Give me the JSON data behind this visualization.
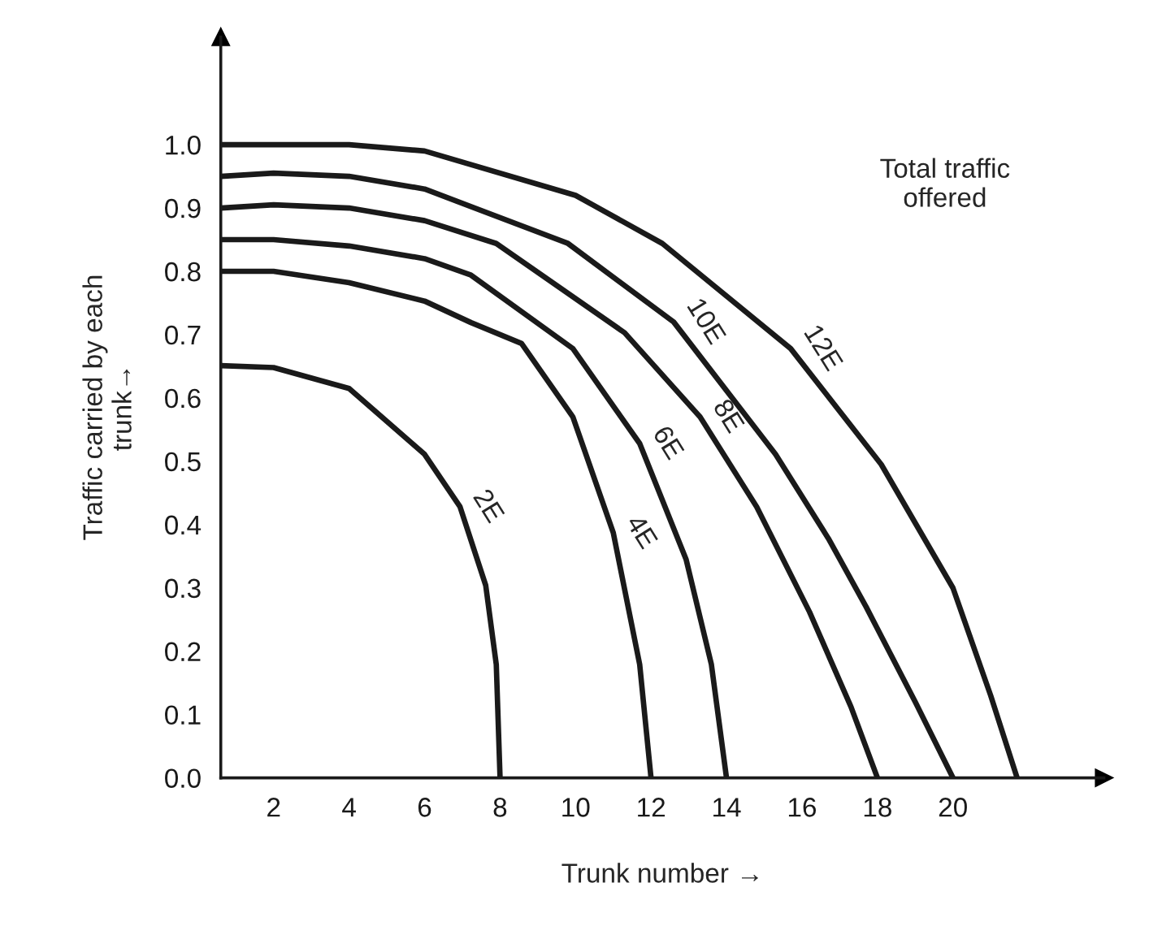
{
  "chart_data": {
    "type": "line",
    "xlabel": "Trunk number →",
    "ylabel": "Traffic carried by each\ntrunk→",
    "xlim": [
      0.6,
      24
    ],
    "ylim": [
      0,
      1.17
    ],
    "xticks": [
      2,
      4,
      6,
      8,
      10,
      12,
      14,
      16,
      18,
      20
    ],
    "yticks": [
      {
        "value": 0,
        "label": "0.0"
      },
      0.1,
      0.2,
      0.3,
      0.4,
      0.5,
      0.6,
      0.7,
      0.8,
      0.9,
      {
        "value": 1,
        "label": "1.0"
      }
    ],
    "grid": false,
    "legend": false,
    "marker": "none",
    "line_style": "solid",
    "series": [
      {
        "name": "2E",
        "color": "#1a1a1a",
        "x": [
          0.6,
          2,
          4,
          6,
          6.94,
          7.62,
          7.9,
          8
        ],
        "values": [
          0.651,
          0.648,
          0.615,
          0.511,
          0.428,
          0.304,
          0.179,
          0
        ]
      },
      {
        "name": "4E",
        "color": "#1a1a1a",
        "x": [
          0.6,
          2,
          4,
          6,
          7.23,
          8.57,
          9.93,
          11.0,
          11.7,
          12
        ],
        "values": [
          0.8,
          0.8,
          0.782,
          0.753,
          0.719,
          0.686,
          0.57,
          0.387,
          0.179,
          0
        ]
      },
      {
        "name": "6E",
        "color": "#1a1a1a",
        "x": [
          0.6,
          2,
          4,
          6,
          7.23,
          9.93,
          11.7,
          12.93,
          13.6,
          14
        ],
        "values": [
          0.85,
          0.85,
          0.84,
          0.82,
          0.794,
          0.678,
          0.528,
          0.345,
          0.179,
          0
        ]
      },
      {
        "name": "8E",
        "color": "#1a1a1a",
        "x": [
          0.6,
          2,
          4,
          6,
          7.9,
          11.3,
          13.3,
          14.8,
          16.2,
          17.3,
          18
        ],
        "values": [
          0.9,
          0.905,
          0.9,
          0.88,
          0.844,
          0.703,
          0.57,
          0.428,
          0.262,
          0.112,
          0
        ]
      },
      {
        "name": "10E",
        "color": "#1a1a1a",
        "x": [
          0.6,
          2,
          4,
          6,
          9.8,
          12.6,
          15.3,
          16.7,
          17.7,
          19,
          20
        ],
        "values": [
          0.95,
          0.955,
          0.95,
          0.93,
          0.844,
          0.72,
          0.511,
          0.378,
          0.27,
          0.12,
          0
        ]
      },
      {
        "name": "12E",
        "color": "#1a1a1a",
        "x": [
          0.6,
          2,
          4,
          6,
          10,
          12.3,
          15.7,
          18.1,
          20,
          21,
          21.7
        ],
        "values": [
          1.0,
          1.0,
          1.0,
          0.99,
          0.92,
          0.844,
          0.678,
          0.495,
          0.3,
          0.13,
          0
        ]
      }
    ],
    "annotations": [
      "Total traffic\noffered"
    ]
  }
}
